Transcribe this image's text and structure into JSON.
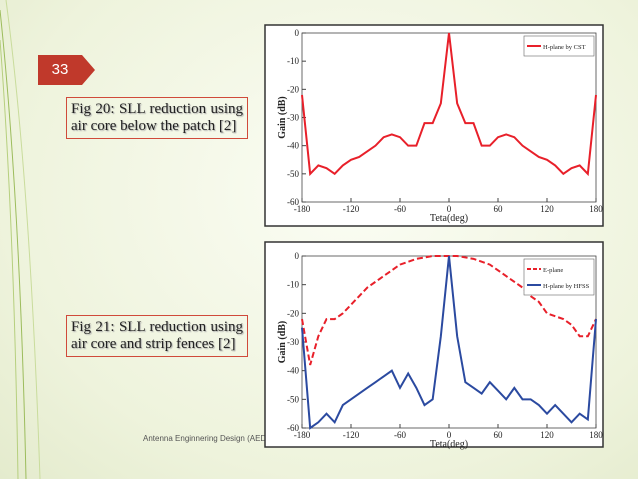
{
  "slide_number": "33",
  "captions": [
    "Fig 20: SLL reduction using air core below the patch [2]",
    "Fig 21: SLL reduction using air core and strip fences [2]"
  ],
  "footer": "Antenna Enginnering Design (AED)",
  "chart_data": [
    {
      "type": "line",
      "x_label": "Teta(deg)",
      "y_label": "Gain (dB)",
      "x": [
        -180,
        -170,
        -160,
        -150,
        -140,
        -130,
        -120,
        -110,
        -100,
        -90,
        -80,
        -70,
        -60,
        -50,
        -40,
        -30,
        -20,
        -10,
        0,
        10,
        20,
        30,
        40,
        50,
        60,
        70,
        80,
        90,
        100,
        110,
        120,
        130,
        140,
        150,
        160,
        170,
        180
      ],
      "xlim": [
        -180,
        180
      ],
      "xticks": [
        -180,
        -120,
        -60,
        0,
        60,
        120,
        180
      ],
      "ylim": [
        -60,
        0
      ],
      "yticks": [
        0,
        -10,
        -20,
        -30,
        -40,
        -50,
        -60
      ],
      "series": [
        {
          "name": "H-plane by CST",
          "color": "#e8202a",
          "style": "solid",
          "values": [
            -22,
            -50,
            -47,
            -48,
            -50,
            -47,
            -45,
            -44,
            -42,
            -40,
            -37,
            -36,
            -37,
            -40,
            -40,
            -32,
            -32,
            -25,
            0,
            -25,
            -32,
            -32,
            -40,
            -40,
            -37,
            -36,
            -37,
            -40,
            -42,
            -44,
            -45,
            -47,
            -50,
            -48,
            -47,
            -50,
            -22
          ]
        }
      ]
    },
    {
      "type": "line",
      "x_label": "Teta(deg)",
      "y_label": "Gain (dB)",
      "x": [
        -180,
        -170,
        -160,
        -150,
        -140,
        -130,
        -120,
        -110,
        -100,
        -90,
        -80,
        -70,
        -60,
        -50,
        -40,
        -30,
        -20,
        -10,
        0,
        10,
        20,
        30,
        40,
        50,
        60,
        70,
        80,
        90,
        100,
        110,
        120,
        130,
        140,
        150,
        160,
        170,
        180
      ],
      "xlim": [
        -180,
        180
      ],
      "xticks": [
        -180,
        -120,
        -60,
        0,
        60,
        120,
        180
      ],
      "ylim": [
        -60,
        0
      ],
      "yticks": [
        0,
        -10,
        -20,
        -30,
        -40,
        -50,
        -60
      ],
      "series": [
        {
          "name": "E-plane",
          "color": "#e8202a",
          "style": "dashed",
          "values": [
            -22,
            -38,
            -28,
            -22,
            -22,
            -20,
            -17,
            -14,
            -11,
            -9,
            -7,
            -5,
            -3,
            -2,
            -1,
            -0.5,
            0,
            0,
            0,
            0,
            -0.5,
            -1,
            -2,
            -3,
            -5,
            -7,
            -9,
            -11,
            -14,
            -16,
            -20,
            -21,
            -22,
            -24,
            -28,
            -28,
            -22
          ]
        },
        {
          "name": "H-plane by HFSS",
          "color": "#2b4aa0",
          "style": "solid",
          "values": [
            -25,
            -60,
            -58,
            -55,
            -58,
            -52,
            -50,
            -48,
            -46,
            -44,
            -42,
            -40,
            -46,
            -41,
            -46,
            -52,
            -50,
            -28,
            0,
            -28,
            -44,
            -46,
            -48,
            -44,
            -47,
            -50,
            -46,
            -50,
            -50,
            -52,
            -55,
            -52,
            -55,
            -58,
            -55,
            -57,
            -22
          ]
        }
      ]
    }
  ]
}
